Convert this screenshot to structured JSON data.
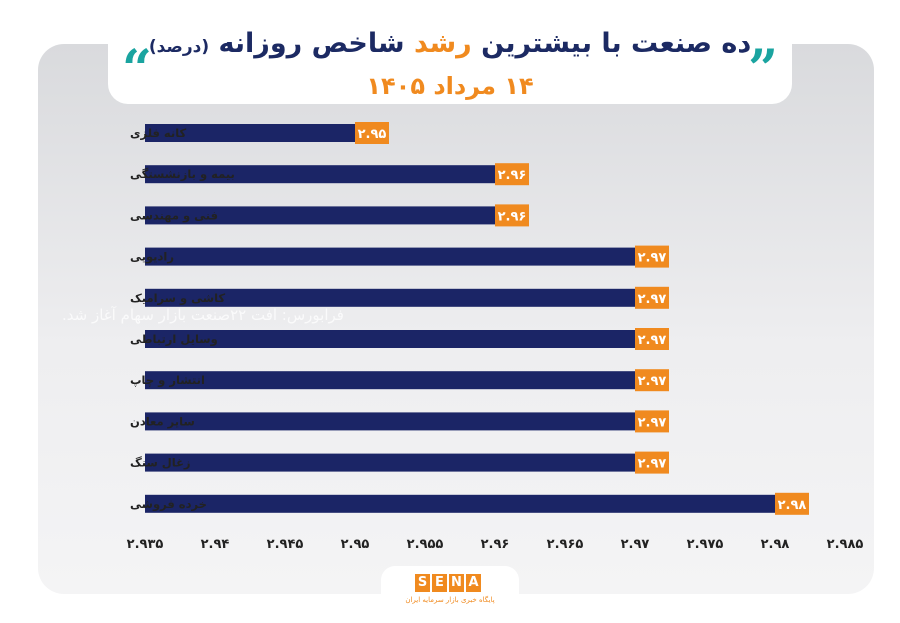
{
  "title": {
    "part1": "ده صنعت با بیشترین",
    "highlight": "رشد",
    "part2": "شاخص روزانه",
    "unit": "(درصد)"
  },
  "subtitle": "۱۴ مرداد ۱۴۰۵",
  "watermark": "فرا‌بورس: افت ۲۲صنعت بازار سهام آغاز شد.",
  "logo": {
    "letters": [
      "S",
      "E",
      "N",
      "A"
    ],
    "tagline": "پایگاه خبری بازار سرمایه ایران"
  },
  "colors": {
    "bar": "#1b2566",
    "label_bg": "#f08a1f",
    "title": "#1c2a63",
    "accent": "#1aa4a0"
  },
  "chart_data": {
    "type": "bar",
    "orientation": "horizontal",
    "categories": [
      "کانه فلزی",
      "بیمه و بازنشستگی",
      "فنی و مهندسی",
      "رادیویی",
      "کاشی و سرامیک",
      "وسایل ارتباطی",
      "انتشار و چاپ",
      "سایر معادن",
      "زغال سنگ",
      "خرده فروشی"
    ],
    "values": [
      2.95,
      2.96,
      2.96,
      2.97,
      2.97,
      2.97,
      2.97,
      2.97,
      2.97,
      2.98
    ],
    "value_labels": [
      "۲.۹۵",
      "۲.۹۶",
      "۲.۹۶",
      "۲.۹۷",
      "۲.۹۷",
      "۲.۹۷",
      "۲.۹۷",
      "۲.۹۷",
      "۲.۹۷",
      "۲.۹۸"
    ],
    "xlim": [
      2.935,
      2.985
    ],
    "xticks": [
      2.935,
      2.94,
      2.945,
      2.95,
      2.955,
      2.96,
      2.965,
      2.97,
      2.975,
      2.98,
      2.985
    ],
    "xtick_labels": [
      "۲.۹۳۵",
      "۲.۹۴",
      "۲.۹۴۵",
      "۲.۹۵",
      "۲.۹۵۵",
      "۲.۹۶",
      "۲.۹۶۵",
      "۲.۹۷",
      "۲.۹۷۵",
      "۲.۹۸",
      "۲.۹۸۵"
    ],
    "grid": false,
    "legend": "none"
  }
}
